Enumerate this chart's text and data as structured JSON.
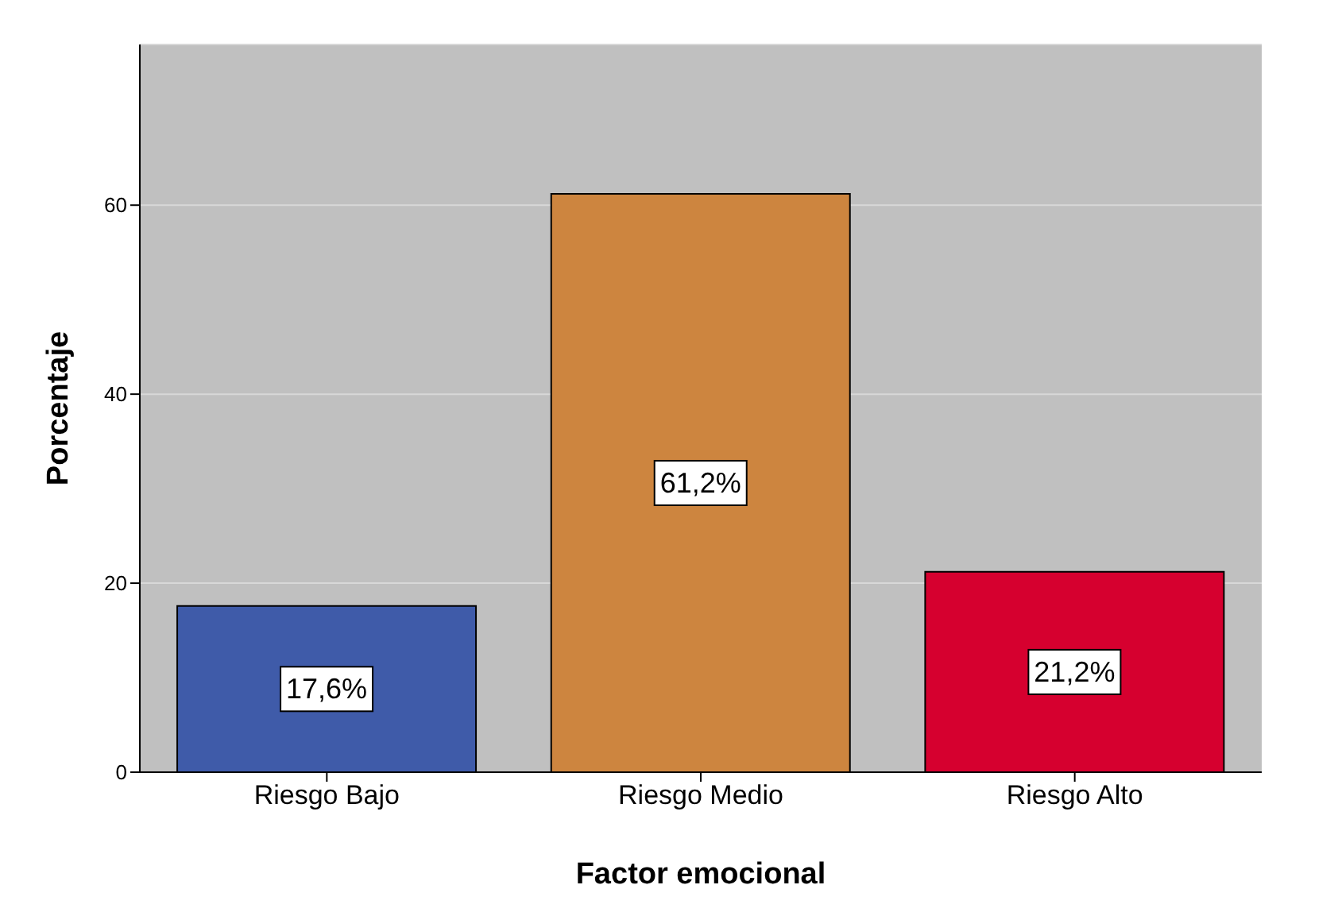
{
  "chart_data": {
    "type": "bar",
    "xlabel": "Factor emocional",
    "ylabel": "Porcentaje",
    "categories": [
      "Riesgo Bajo",
      "Riesgo Medio",
      "Riesgo Alto"
    ],
    "values": [
      17.6,
      61.2,
      21.2
    ],
    "colors": [
      "#3f5ba9",
      "#cd853f",
      "#d6002f"
    ],
    "value_labels": [
      "17,6%",
      "61,2%",
      "21,2%"
    ],
    "ylim": [
      0,
      77
    ],
    "yticks": [
      0,
      20,
      40,
      60
    ],
    "grid": "y",
    "legend": false
  }
}
